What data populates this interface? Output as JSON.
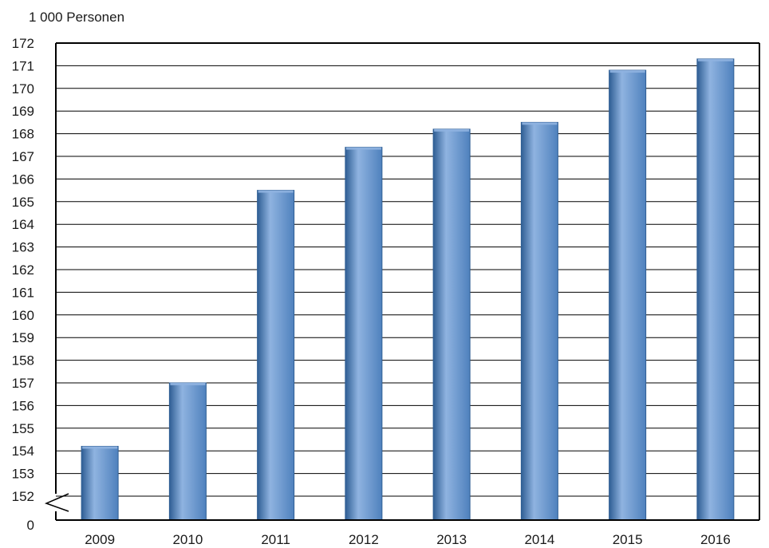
{
  "chart_data": {
    "type": "bar",
    "unit_label": "1 000 Personen",
    "categories": [
      "2009",
      "2010",
      "2011",
      "2012",
      "2013",
      "2014",
      "2015",
      "2016"
    ],
    "values": [
      154.2,
      157.0,
      165.5,
      167.4,
      168.2,
      168.5,
      170.8,
      171.3
    ],
    "ylim": [
      152,
      172
    ],
    "y_ticks": [
      "172",
      "171",
      "170",
      "169",
      "168",
      "167",
      "166",
      "165",
      "164",
      "163",
      "162",
      "161",
      "160",
      "159",
      "158",
      "157",
      "156",
      "155",
      "154",
      "153",
      "152"
    ],
    "y_zero_label": "0",
    "axis_break": true,
    "grid": true,
    "colors": {
      "bar": "#4f81bd",
      "bar_dark": "#2f5e94",
      "bar_light": "#8fb3e0"
    }
  }
}
